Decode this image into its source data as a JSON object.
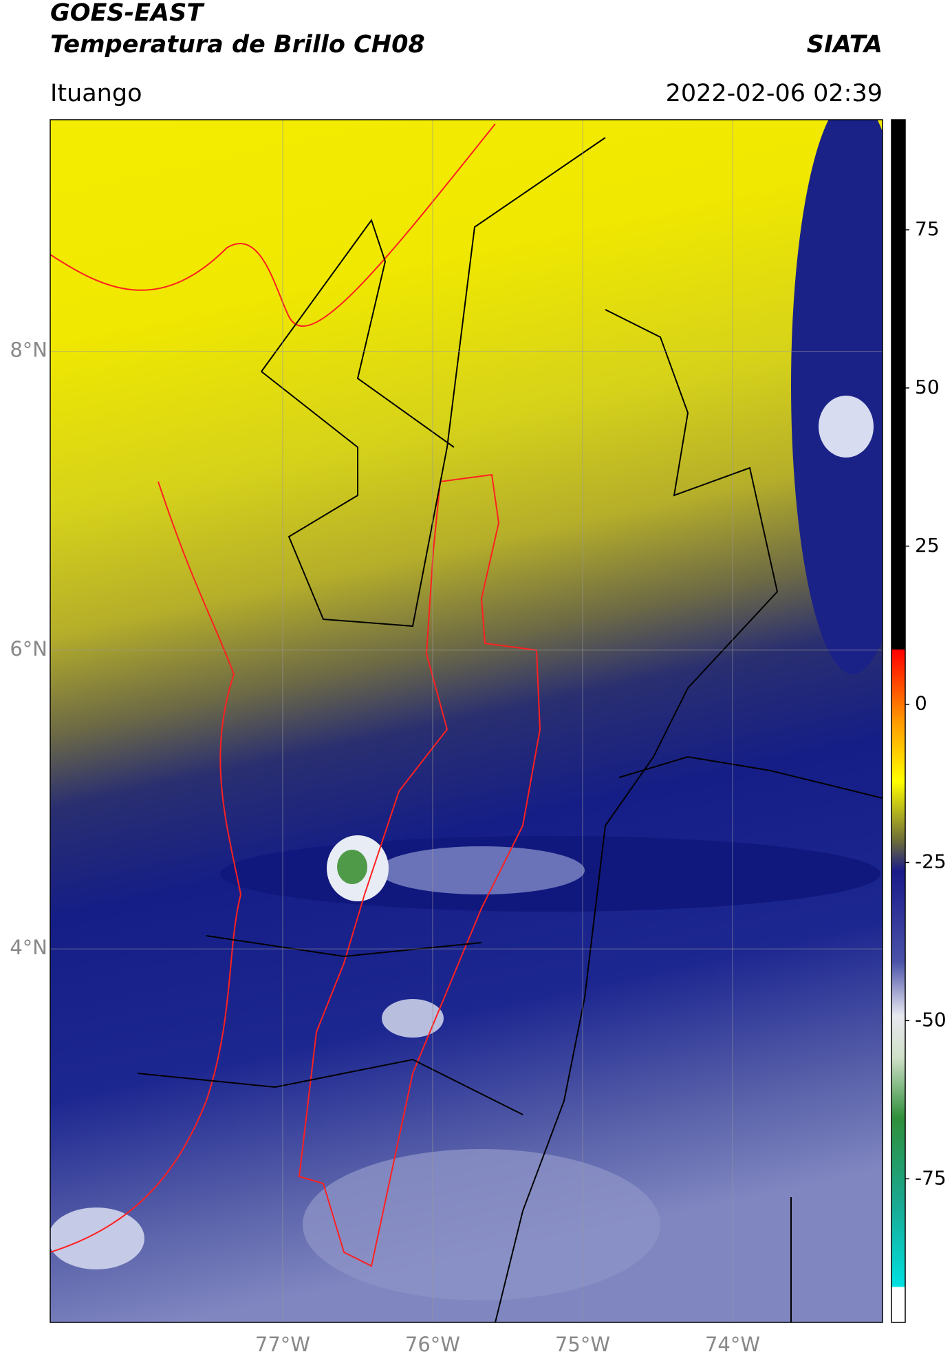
{
  "header": {
    "title": "GOES-EAST",
    "subtitle": "Temperatura de Brillo CH08",
    "brand": "SIATA",
    "place": "Ituango",
    "datetime": "2022-02-06 02:39"
  },
  "map": {
    "xlim": [
      -78.55,
      -73.0
    ],
    "ylim": [
      1.5,
      9.55
    ],
    "xticks": [
      {
        "value": -77,
        "label": "77°W"
      },
      {
        "value": -76,
        "label": "76°W"
      },
      {
        "value": -75,
        "label": "75°W"
      },
      {
        "value": -74,
        "label": "74°W"
      }
    ],
    "yticks": [
      {
        "value": 8,
        "label": "8°N"
      },
      {
        "value": 6,
        "label": "6°N"
      },
      {
        "value": 4,
        "label": "4°N"
      }
    ],
    "grid": true
  },
  "colorbar": {
    "lim": [
      -97.7,
      92.4
    ],
    "ticks": [
      75,
      50,
      25,
      0,
      -25,
      -50,
      -75
    ]
  }
}
